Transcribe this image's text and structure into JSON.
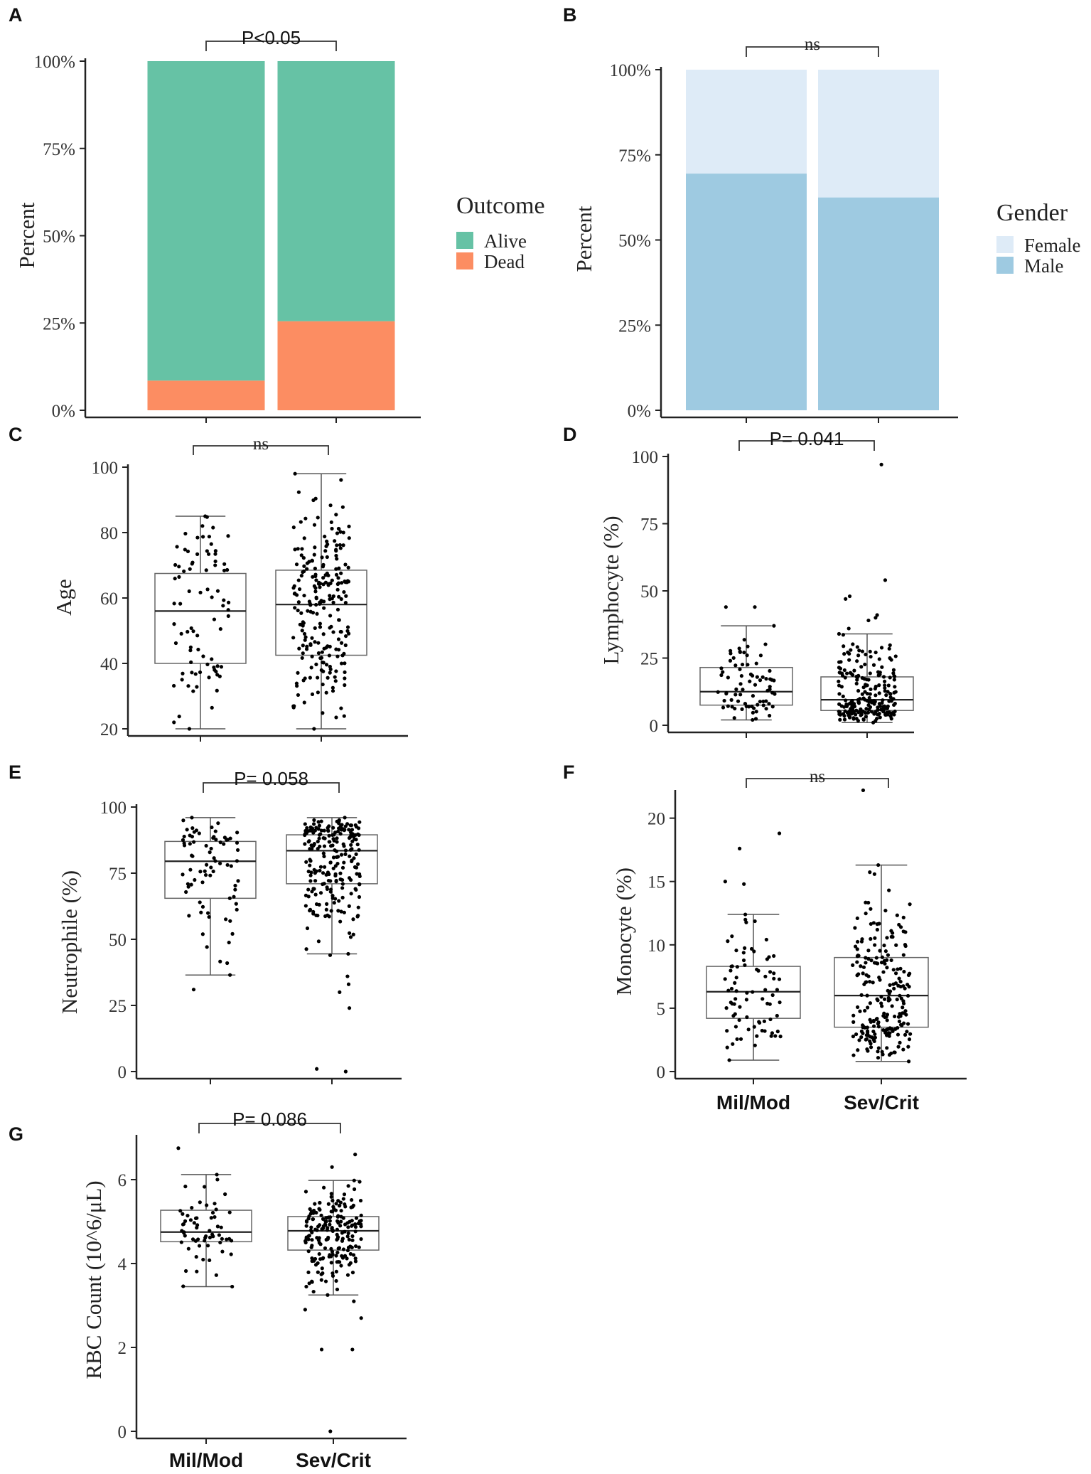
{
  "chart_data": [
    {
      "id": "A",
      "panel_label": "A",
      "type": "bar",
      "stacked": true,
      "categories": [
        "Mil/Mod",
        "Sev/Crit"
      ],
      "series": [
        {
          "name": "Alive",
          "values": [
            91.5,
            74.5
          ],
          "color": "#66c2a5"
        },
        {
          "name": "Dead",
          "values": [
            8.5,
            25.5
          ],
          "color": "#fc8d62"
        }
      ],
      "ylabel": "Percent",
      "ylim": [
        0,
        100
      ],
      "yticks": [
        0,
        25,
        50,
        75,
        100
      ],
      "yticklabels": [
        "0%",
        "25%",
        "50%",
        "75%",
        "100%"
      ],
      "legend_title": "Outcome",
      "legend": [
        "Alive",
        "Dead"
      ],
      "significance": "P<0.05",
      "show_xlabels": false
    },
    {
      "id": "B",
      "panel_label": "B",
      "type": "bar",
      "stacked": true,
      "categories": [
        "Mil/Mod",
        "Sev/Crit"
      ],
      "series": [
        {
          "name": "Female",
          "values": [
            30.5,
            37.5
          ],
          "color": "#deebf7"
        },
        {
          "name": "Male",
          "values": [
            69.5,
            62.5
          ],
          "color": "#9ecae1"
        }
      ],
      "ylabel": "Percent",
      "ylim": [
        0,
        100
      ],
      "yticks": [
        0,
        25,
        50,
        75,
        100
      ],
      "yticklabels": [
        "0%",
        "25%",
        "50%",
        "75%",
        "100%"
      ],
      "legend_title": "Gender",
      "legend": [
        "Female",
        "Male"
      ],
      "significance": "ns",
      "show_xlabels": false
    },
    {
      "id": "C",
      "panel_label": "C",
      "type": "box",
      "categories": [
        "Mil/Mod",
        "Sev/Crit"
      ],
      "ylabel": "Age",
      "ylim": [
        20,
        100
      ],
      "yticks": [
        20,
        40,
        60,
        80,
        100
      ],
      "boxes": [
        {
          "group": "Mil/Mod",
          "min": 20,
          "q1": 40,
          "median": 56,
          "q3": 67.5,
          "max": 85,
          "n": 80
        },
        {
          "group": "Sev/Crit",
          "min": 20,
          "q1": 42.5,
          "median": 58,
          "q3": 68.5,
          "max": 98,
          "n": 230
        }
      ],
      "significance": "ns",
      "show_xlabels": false
    },
    {
      "id": "D",
      "panel_label": "D",
      "type": "box",
      "categories": [
        "Mil/Mod",
        "Sev/Crit"
      ],
      "ylabel": "Lymphocyte (%)",
      "ylim": [
        0,
        100
      ],
      "yticks": [
        0,
        25,
        50,
        75,
        100
      ],
      "boxes": [
        {
          "group": "Mil/Mod",
          "min": 2,
          "q1": 7.5,
          "median": 12.5,
          "q3": 21.5,
          "max": 37,
          "n": 75,
          "outliers": [
            44,
            44
          ]
        },
        {
          "group": "Sev/Crit",
          "min": 1,
          "q1": 5.5,
          "median": 9.5,
          "q3": 18,
          "max": 34,
          "n": 220,
          "outliers": [
            97,
            54,
            48,
            47,
            41,
            40,
            39,
            36
          ]
        }
      ],
      "significance": "P= 0.041",
      "show_xlabels": false
    },
    {
      "id": "E",
      "panel_label": "E",
      "type": "box",
      "categories": [
        "Mil/Mod",
        "Sev/Crit"
      ],
      "ylabel": "Neutrophile (%)",
      "ylim": [
        0,
        100
      ],
      "yticks": [
        0,
        25,
        50,
        75,
        100
      ],
      "boxes": [
        {
          "group": "Mil/Mod",
          "min": 36.5,
          "q1": 65.5,
          "median": 79.5,
          "q3": 87,
          "max": 96,
          "n": 75,
          "outliers": [
            41,
            31
          ]
        },
        {
          "group": "Sev/Crit",
          "min": 44.5,
          "q1": 71,
          "median": 83.5,
          "q3": 89.5,
          "max": 96,
          "n": 220,
          "outliers": [
            44,
            36,
            33,
            30,
            24,
            1,
            0
          ]
        }
      ],
      "significance": "P= 0.058",
      "show_xlabels": false
    },
    {
      "id": "F",
      "panel_label": "F",
      "type": "box",
      "categories": [
        "Mil/Mod",
        "Sev/Crit"
      ],
      "ylabel": "Monocyte (%)",
      "ylim": [
        0,
        22
      ],
      "yticks": [
        0,
        5,
        10,
        15,
        20
      ],
      "boxes": [
        {
          "group": "Mil/Mod",
          "min": 0.9,
          "q1": 4.2,
          "median": 6.3,
          "q3": 8.3,
          "max": 12.4,
          "n": 75,
          "outliers": [
            18.8,
            17.6,
            15,
            14.8
          ]
        },
        {
          "group": "Sev/Crit",
          "min": 0.8,
          "q1": 3.5,
          "median": 6,
          "q3": 9,
          "max": 16.3,
          "n": 220,
          "outliers": [
            22.2
          ]
        }
      ],
      "significance": "ns",
      "show_xlabels": true
    },
    {
      "id": "G",
      "panel_label": "G",
      "type": "box",
      "categories": [
        "Mil/Mod",
        "Sev/Crit"
      ],
      "ylabel": "RBC Count (10^6/μL)",
      "ylim": [
        0,
        7
      ],
      "yticks": [
        0,
        2,
        4,
        6
      ],
      "boxes": [
        {
          "group": "Mil/Mod",
          "min": 3.45,
          "q1": 4.52,
          "median": 4.75,
          "q3": 5.27,
          "max": 6.12,
          "n": 60,
          "outliers": [
            6.75
          ]
        },
        {
          "group": "Sev/Crit",
          "min": 3.25,
          "q1": 4.32,
          "median": 4.78,
          "q3": 5.12,
          "max": 5.98,
          "n": 200,
          "outliers": [
            6.6,
            6.3,
            3.1,
            2.9,
            2.7,
            1.95,
            1.95,
            0
          ]
        }
      ],
      "significance": "P= 0.086",
      "show_xlabels": true
    }
  ]
}
